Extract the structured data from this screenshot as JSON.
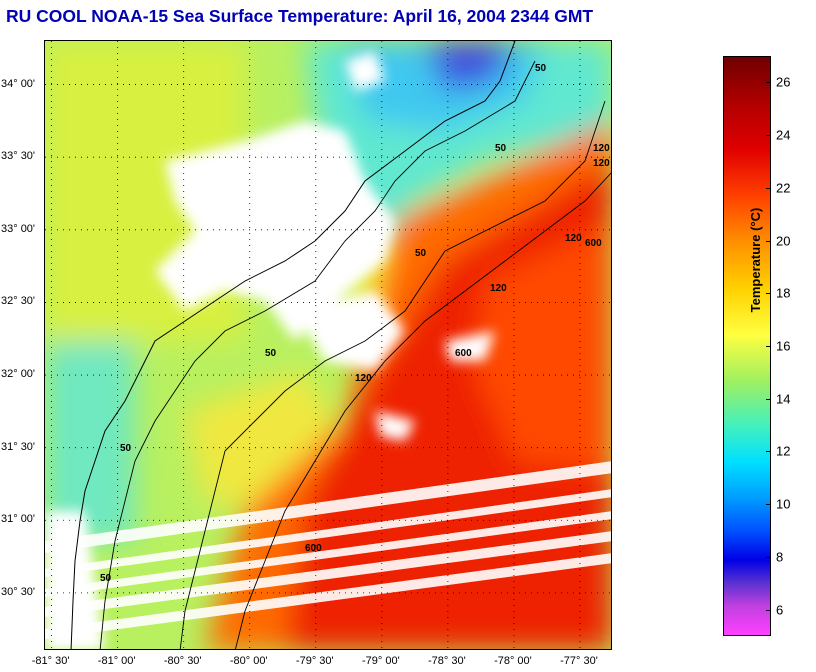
{
  "title": "RU COOL  NOAA-15  Sea Surface Temperature:  April 16, 2004 2344 GMT",
  "map": {
    "lat_labels": [
      {
        "text": "34° 00'",
        "lat": 34.0
      },
      {
        "text": "33° 30'",
        "lat": 33.5
      },
      {
        "text": "33° 00'",
        "lat": 33.0
      },
      {
        "text": "32° 30'",
        "lat": 32.5
      },
      {
        "text": "32° 00'",
        "lat": 32.0
      },
      {
        "text": "31° 30'",
        "lat": 31.5
      },
      {
        "text": "31° 00'",
        "lat": 31.0
      },
      {
        "text": "30° 30'",
        "lat": 30.5
      }
    ],
    "lon_labels": [
      {
        "text": "-81° 30'",
        "lon": -81.5
      },
      {
        "text": "-81° 00'",
        "lon": -81.0
      },
      {
        "text": "-80° 30'",
        "lon": -80.5
      },
      {
        "text": "-80° 00'",
        "lon": -80.0
      },
      {
        "text": "-79° 30'",
        "lon": -79.5
      },
      {
        "text": "-79° 00'",
        "lon": -79.0
      },
      {
        "text": "-78° 30'",
        "lon": -78.5
      },
      {
        "text": "-78° 00'",
        "lon": -78.0
      },
      {
        "text": "-77° 30'",
        "lon": -77.5
      }
    ],
    "lat_range": [
      30.1,
      34.3
    ],
    "lon_range": [
      -81.55,
      -77.25
    ],
    "contour_labels": [
      "50",
      "50",
      "50",
      "50",
      "120",
      "120",
      "120",
      "120",
      "600",
      "600",
      "600",
      "120",
      "50",
      "50"
    ],
    "colors": {
      "land_cloud": "#ffffff",
      "cold_shelf": "#50e8c8",
      "mid_shelf": "#a8f070",
      "warm_shelf": "#f0f040",
      "gulf_stream": "#ee2200",
      "cold_patch": "#4050e0"
    }
  },
  "colorbar": {
    "label": "Temperature (°C)",
    "min": 5,
    "max": 27,
    "ticks": [
      "6",
      "8",
      "10",
      "12",
      "14",
      "16",
      "18",
      "20",
      "22",
      "24",
      "26"
    ]
  }
}
